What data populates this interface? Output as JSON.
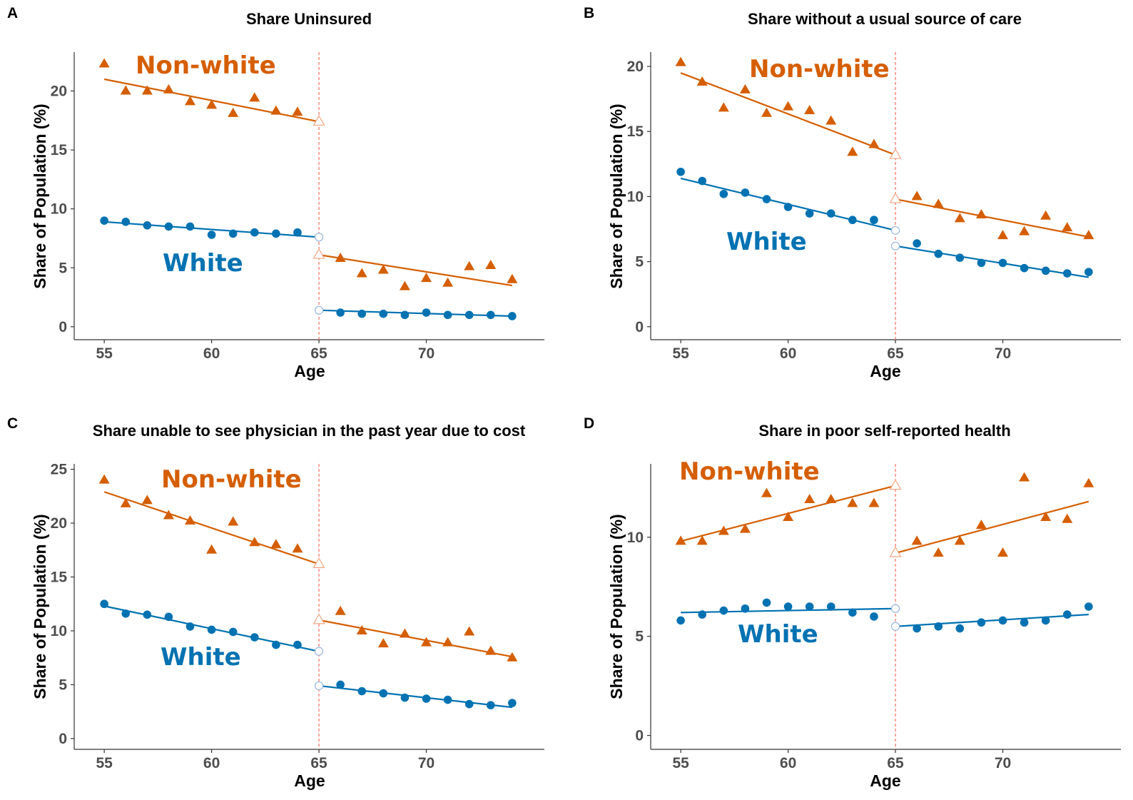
{
  "colors": {
    "non_white": "#D55E00",
    "white": "#0072B2",
    "cutoff_line": "#F8766D",
    "axis": "#333333",
    "tick_text": "#4d4d4d"
  },
  "chart_data": [
    {
      "panel": "A",
      "type": "scatter",
      "title": "Share Uninsured",
      "xlabel": "Age",
      "ylabel": "Share of Population (%)",
      "xlim": [
        53.6,
        75.5
      ],
      "ylim": [
        -1.1,
        23.3
      ],
      "xticks": [
        55,
        60,
        65,
        70
      ],
      "yticks": [
        0,
        5,
        10,
        15,
        20
      ],
      "cutoff": 65,
      "grid": false,
      "labels": {
        "non_white": "Non-white",
        "white": "White"
      },
      "series": [
        {
          "name": "Non-white",
          "marker": "triangle",
          "points": [
            [
              55,
              22.3
            ],
            [
              56,
              20.0
            ],
            [
              57,
              20.0
            ],
            [
              58,
              20.1
            ],
            [
              59,
              19.1
            ],
            [
              60,
              18.8
            ],
            [
              61,
              18.1
            ],
            [
              62,
              19.4
            ],
            [
              63,
              18.3
            ],
            [
              64,
              18.2
            ],
            [
              66,
              5.8
            ],
            [
              67,
              4.5
            ],
            [
              68,
              4.8
            ],
            [
              69,
              3.4
            ],
            [
              70,
              4.1
            ],
            [
              71,
              3.7
            ],
            [
              72,
              5.1
            ],
            [
              73,
              5.2
            ],
            [
              74,
              4.0
            ]
          ],
          "fit_before": [
            [
              55,
              21.0
            ],
            [
              65,
              17.4
            ]
          ],
          "fit_after": [
            [
              65,
              6.1
            ],
            [
              74,
              3.5
            ]
          ]
        },
        {
          "name": "White",
          "marker": "circle",
          "points": [
            [
              55,
              9.0
            ],
            [
              56,
              8.9
            ],
            [
              57,
              8.6
            ],
            [
              58,
              8.5
            ],
            [
              59,
              8.5
            ],
            [
              60,
              7.8
            ],
            [
              61,
              7.9
            ],
            [
              62,
              8.0
            ],
            [
              63,
              7.9
            ],
            [
              64,
              8.0
            ],
            [
              66,
              1.2
            ],
            [
              67,
              1.1
            ],
            [
              68,
              1.1
            ],
            [
              69,
              1.0
            ],
            [
              70,
              1.2
            ],
            [
              71,
              1.0
            ],
            [
              72,
              1.0
            ],
            [
              73,
              1.0
            ],
            [
              74,
              0.9
            ]
          ],
          "fit_before": [
            [
              55,
              8.9
            ],
            [
              65,
              7.6
            ]
          ],
          "fit_after": [
            [
              65,
              1.4
            ],
            [
              74,
              0.9
            ]
          ]
        }
      ]
    },
    {
      "panel": "B",
      "type": "scatter",
      "title": "Share without a usual source of care",
      "xlabel": "Age",
      "ylabel": "Share of Population (%)",
      "xlim": [
        53.6,
        75.5
      ],
      "ylim": [
        -1.0,
        21.1
      ],
      "xticks": [
        55,
        60,
        65,
        70
      ],
      "yticks": [
        0,
        5,
        10,
        15,
        20
      ],
      "cutoff": 65,
      "grid": false,
      "labels": {
        "non_white": "Non-white",
        "white": "White"
      },
      "series": [
        {
          "name": "Non-white",
          "marker": "triangle",
          "points": [
            [
              55,
              20.3
            ],
            [
              56,
              18.8
            ],
            [
              57,
              16.8
            ],
            [
              58,
              18.2
            ],
            [
              59,
              16.4
            ],
            [
              60,
              16.9
            ],
            [
              61,
              16.6
            ],
            [
              62,
              15.8
            ],
            [
              63,
              13.4
            ],
            [
              64,
              14.0
            ],
            [
              66,
              10.0
            ],
            [
              67,
              9.4
            ],
            [
              68,
              8.3
            ],
            [
              69,
              8.6
            ],
            [
              70,
              7.0
            ],
            [
              71,
              7.3
            ],
            [
              72,
              8.5
            ],
            [
              73,
              7.6
            ],
            [
              74,
              7.0
            ]
          ],
          "fit_before": [
            [
              55,
              19.5
            ],
            [
              65,
              13.2
            ]
          ],
          "fit_after": [
            [
              65,
              9.8
            ],
            [
              74,
              6.9
            ]
          ]
        },
        {
          "name": "White",
          "marker": "circle",
          "points": [
            [
              55,
              11.9
            ],
            [
              56,
              11.2
            ],
            [
              57,
              10.2
            ],
            [
              58,
              10.3
            ],
            [
              59,
              9.8
            ],
            [
              60,
              9.2
            ],
            [
              61,
              8.7
            ],
            [
              62,
              8.7
            ],
            [
              63,
              8.2
            ],
            [
              64,
              8.2
            ],
            [
              66,
              6.4
            ],
            [
              67,
              5.6
            ],
            [
              68,
              5.3
            ],
            [
              69,
              4.9
            ],
            [
              70,
              4.9
            ],
            [
              71,
              4.5
            ],
            [
              72,
              4.3
            ],
            [
              73,
              4.1
            ],
            [
              74,
              4.2
            ]
          ],
          "fit_before": [
            [
              55,
              11.4
            ],
            [
              65,
              7.4
            ]
          ],
          "fit_after": [
            [
              65,
              6.2
            ],
            [
              74,
              3.8
            ]
          ]
        }
      ]
    },
    {
      "panel": "C",
      "type": "scatter",
      "title": "Share unable to see physician in the past year due to cost",
      "xlabel": "Age",
      "ylabel": "Share of Population (%)",
      "xlim": [
        53.6,
        75.5
      ],
      "ylim": [
        -1.0,
        25.5
      ],
      "xticks": [
        55,
        60,
        65,
        70
      ],
      "yticks": [
        0,
        5,
        10,
        15,
        20,
        25
      ],
      "cutoff": 65,
      "grid": false,
      "labels": {
        "non_white": "Non-white",
        "white": "White"
      },
      "series": [
        {
          "name": "Non-white",
          "marker": "triangle",
          "points": [
            [
              55,
              24.0
            ],
            [
              56,
              21.8
            ],
            [
              57,
              22.1
            ],
            [
              58,
              20.7
            ],
            [
              59,
              20.2
            ],
            [
              60,
              17.5
            ],
            [
              61,
              20.1
            ],
            [
              62,
              18.2
            ],
            [
              63,
              18.0
            ],
            [
              64,
              17.6
            ],
            [
              66,
              11.8
            ],
            [
              67,
              10.0
            ],
            [
              68,
              8.8
            ],
            [
              69,
              9.7
            ],
            [
              70,
              8.9
            ],
            [
              71,
              8.9
            ],
            [
              72,
              9.9
            ],
            [
              73,
              8.1
            ],
            [
              74,
              7.5
            ]
          ],
          "fit_before": [
            [
              55,
              22.9
            ],
            [
              65,
              16.2
            ]
          ],
          "fit_after": [
            [
              65,
              11.0
            ],
            [
              74,
              7.6
            ]
          ]
        },
        {
          "name": "White",
          "marker": "circle",
          "points": [
            [
              55,
              12.5
            ],
            [
              56,
              11.6
            ],
            [
              57,
              11.5
            ],
            [
              58,
              11.3
            ],
            [
              59,
              10.4
            ],
            [
              60,
              10.1
            ],
            [
              61,
              9.9
            ],
            [
              62,
              9.4
            ],
            [
              63,
              8.7
            ],
            [
              64,
              8.7
            ],
            [
              66,
              5.0
            ],
            [
              67,
              4.4
            ],
            [
              68,
              4.2
            ],
            [
              69,
              3.8
            ],
            [
              70,
              3.7
            ],
            [
              71,
              3.6
            ],
            [
              72,
              3.2
            ],
            [
              73,
              3.1
            ],
            [
              74,
              3.3
            ]
          ],
          "fit_before": [
            [
              55,
              12.3
            ],
            [
              65,
              8.1
            ]
          ],
          "fit_after": [
            [
              65,
              4.9
            ],
            [
              74,
              2.9
            ]
          ]
        }
      ]
    },
    {
      "panel": "D",
      "type": "scatter",
      "title": "Share in poor self-reported health",
      "xlabel": "Age",
      "ylabel": "Share of Population (%)",
      "xlim": [
        53.6,
        75.5
      ],
      "ylim": [
        -0.7,
        13.7
      ],
      "xticks": [
        55,
        60,
        65,
        70
      ],
      "yticks": [
        0,
        5,
        10
      ],
      "cutoff": 65,
      "grid": false,
      "labels": {
        "non_white": "Non-white",
        "white": "White"
      },
      "series": [
        {
          "name": "Non-white",
          "marker": "triangle",
          "points": [
            [
              55,
              9.8
            ],
            [
              56,
              9.8
            ],
            [
              57,
              10.3
            ],
            [
              58,
              10.4
            ],
            [
              59,
              12.2
            ],
            [
              60,
              11.0
            ],
            [
              61,
              11.9
            ],
            [
              62,
              11.9
            ],
            [
              63,
              11.7
            ],
            [
              64,
              11.7
            ],
            [
              66,
              9.8
            ],
            [
              67,
              9.2
            ],
            [
              68,
              9.8
            ],
            [
              69,
              10.6
            ],
            [
              70,
              9.2
            ],
            [
              71,
              13.0
            ],
            [
              72,
              11.0
            ],
            [
              73,
              10.9
            ],
            [
              74,
              12.7
            ]
          ],
          "fit_before": [
            [
              55,
              9.8
            ],
            [
              65,
              12.6
            ]
          ],
          "fit_after": [
            [
              65,
              9.2
            ],
            [
              74,
              11.8
            ]
          ]
        },
        {
          "name": "White",
          "marker": "circle",
          "points": [
            [
              55,
              5.8
            ],
            [
              56,
              6.1
            ],
            [
              57,
              6.3
            ],
            [
              58,
              6.4
            ],
            [
              59,
              6.7
            ],
            [
              60,
              6.5
            ],
            [
              61,
              6.5
            ],
            [
              62,
              6.5
            ],
            [
              63,
              6.2
            ],
            [
              64,
              6.0
            ],
            [
              66,
              5.4
            ],
            [
              67,
              5.5
            ],
            [
              68,
              5.4
            ],
            [
              69,
              5.7
            ],
            [
              70,
              5.8
            ],
            [
              71,
              5.7
            ],
            [
              72,
              5.8
            ],
            [
              73,
              6.1
            ],
            [
              74,
              6.5
            ]
          ],
          "fit_before": [
            [
              55,
              6.2
            ],
            [
              65,
              6.4
            ]
          ],
          "fit_after": [
            [
              65,
              5.5
            ],
            [
              74,
              6.1
            ]
          ]
        }
      ]
    }
  ]
}
